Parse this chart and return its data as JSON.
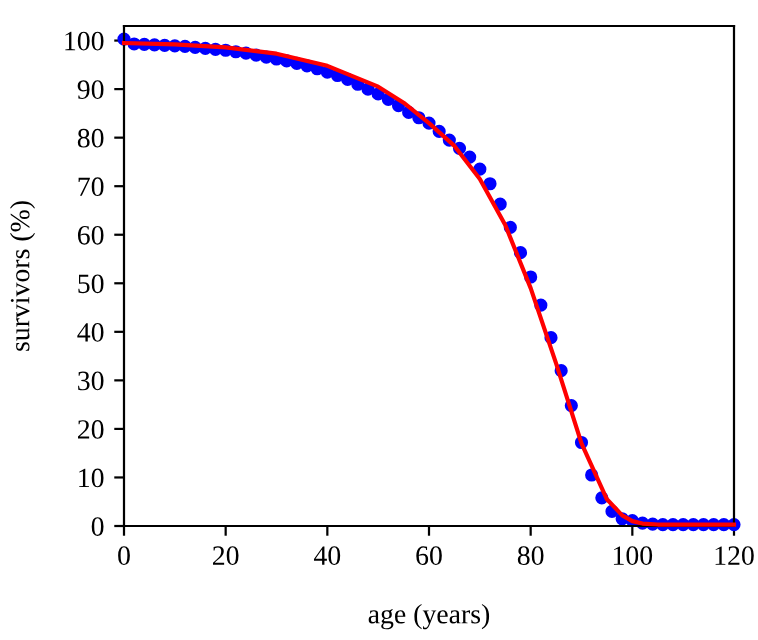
{
  "chart_data": {
    "type": "scatter",
    "xlabel": "age (years)",
    "ylabel": "survivors (%)",
    "xlim": [
      0,
      120
    ],
    "ylim": [
      0,
      103
    ],
    "xticks": [
      0,
      20,
      40,
      60,
      80,
      100,
      120
    ],
    "yticks": [
      0,
      10,
      20,
      30,
      40,
      50,
      60,
      70,
      80,
      90,
      100
    ],
    "grid": false,
    "legend": false,
    "series": [
      {
        "color": "#0000ff",
        "marker": "circle",
        "x": [
          0,
          2,
          4,
          6,
          8,
          10,
          12,
          14,
          16,
          18,
          20,
          22,
          24,
          26,
          28,
          30,
          32,
          34,
          36,
          38,
          40,
          42,
          44,
          46,
          48,
          50,
          52,
          54,
          56,
          58,
          60,
          62,
          64,
          66,
          68,
          70,
          72,
          74,
          76,
          78,
          80,
          82,
          84,
          86,
          88,
          90,
          92,
          94,
          96,
          98,
          100,
          102,
          104,
          106,
          108,
          110,
          112,
          114,
          116,
          118,
          120
        ],
        "values": [
          100.3,
          99.3,
          99.2,
          99.1,
          99.0,
          98.9,
          98.8,
          98.6,
          98.4,
          98.2,
          98.0,
          97.7,
          97.4,
          97.0,
          96.6,
          96.2,
          95.8,
          95.3,
          94.8,
          94.2,
          93.5,
          92.8,
          92.0,
          91.0,
          90.0,
          89.0,
          87.9,
          86.6,
          85.2,
          84.1,
          83.0,
          81.3,
          79.5,
          77.8,
          76.0,
          73.5,
          70.5,
          66.3,
          61.5,
          56.3,
          51.3,
          45.5,
          38.8,
          32.0,
          24.8,
          17.2,
          10.5,
          5.8,
          3.0,
          1.5,
          1.1,
          0.6,
          0.4,
          0.3,
          0.3,
          0.3,
          0.3,
          0.3,
          0.3,
          0.3,
          0.3
        ]
      },
      {
        "type": "line",
        "color": "#ff0000",
        "line_style": "solid",
        "x": [
          0,
          10,
          20,
          30,
          40,
          50,
          55,
          60,
          65,
          70,
          75,
          80,
          85,
          90,
          95,
          98,
          100,
          102,
          105,
          120
        ],
        "values": [
          99.5,
          99.2,
          98.6,
          97.3,
          94.8,
          90.5,
          87.2,
          83.0,
          78.3,
          71.5,
          62.0,
          49.0,
          33.5,
          17.0,
          5.5,
          2.2,
          1.0,
          0.5,
          0.3,
          0.3
        ]
      }
    ]
  }
}
